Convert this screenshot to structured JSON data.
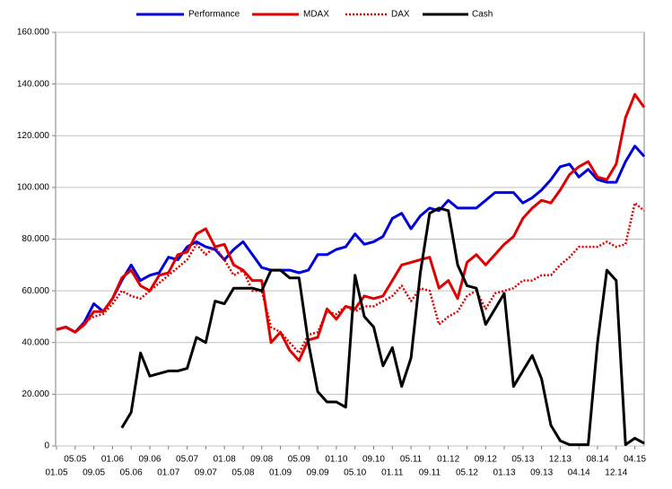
{
  "chart_data": {
    "type": "line",
    "categories": [
      "01.05",
      null,
      "05.05",
      null,
      "09.05",
      null,
      "01.06",
      null,
      "05.06",
      null,
      "09.06",
      null,
      "01.07",
      null,
      "05.07",
      null,
      "09.07",
      null,
      "01.08",
      null,
      "05.08",
      null,
      "09.08",
      null,
      "01.09",
      null,
      "05.09",
      null,
      "09.09",
      null,
      "01.10",
      null,
      "05.10",
      null,
      "09.10",
      null,
      "01.11",
      null,
      "05.11",
      null,
      "09.11",
      null,
      "01.12",
      null,
      "05.12",
      null,
      "09.12",
      null,
      "01.13",
      null,
      "05.13",
      null,
      "09.13",
      null,
      "12.13",
      null,
      "04.14",
      null,
      "08.14",
      null,
      "12.14",
      null,
      "04.15",
      null
    ],
    "series": [
      {
        "name": "Performance",
        "color": "#0000dd",
        "style": "solid",
        "values": [
          45000,
          46000,
          44000,
          48000,
          55000,
          52000,
          57000,
          64000,
          70000,
          64000,
          66000,
          67000,
          73000,
          72000,
          77000,
          79000,
          77000,
          76000,
          72000,
          76000,
          79000,
          74000,
          69000,
          68000,
          68000,
          68000,
          67000,
          68000,
          74000,
          74000,
          76000,
          77000,
          82000,
          78000,
          79000,
          81000,
          88000,
          90000,
          84000,
          89000,
          92000,
          91000,
          95000,
          92000,
          92000,
          92000,
          95000,
          98000,
          98000,
          98000,
          94000,
          96000,
          99000,
          103000,
          108000,
          109000,
          104000,
          107000,
          103000,
          102000,
          102000,
          110000,
          116000,
          112000
        ]
      },
      {
        "name": "MDAX",
        "color": "#e00000",
        "style": "solid",
        "values": [
          45000,
          46000,
          44000,
          47000,
          52000,
          52000,
          57000,
          65000,
          68000,
          62000,
          60000,
          66000,
          67000,
          74000,
          75000,
          82000,
          84000,
          77000,
          78000,
          70000,
          68000,
          64000,
          64000,
          40000,
          44000,
          37000,
          33000,
          41000,
          42000,
          53000,
          49000,
          54000,
          53000,
          58000,
          57000,
          58000,
          64000,
          70000,
          71000,
          72000,
          73000,
          61000,
          64000,
          57000,
          71000,
          74000,
          70000,
          74000,
          78000,
          81000,
          88000,
          92000,
          95000,
          94000,
          99000,
          105000,
          108000,
          110000,
          104000,
          103000,
          109000,
          127000,
          136000,
          131000
        ]
      },
      {
        "name": "DAX",
        "color": "#e00000",
        "style": "dotted",
        "values": [
          45000,
          46000,
          44000,
          48000,
          50000,
          51000,
          55000,
          60000,
          58000,
          57000,
          60000,
          63000,
          66000,
          69000,
          72000,
          78000,
          74000,
          77000,
          72000,
          66000,
          68000,
          60000,
          60000,
          46000,
          44000,
          40000,
          36000,
          43000,
          44000,
          52000,
          51000,
          54000,
          52000,
          54000,
          54000,
          56000,
          58000,
          62000,
          56000,
          61000,
          60000,
          47000,
          50000,
          52000,
          58000,
          60000,
          53000,
          59000,
          60000,
          61000,
          64000,
          64000,
          66000,
          66000,
          70000,
          73000,
          77000,
          77000,
          77000,
          79000,
          77000,
          78000,
          94000,
          91000
        ]
      },
      {
        "name": "Cash",
        "color": "#000000",
        "style": "solid",
        "values": [
          null,
          null,
          null,
          null,
          null,
          null,
          null,
          7000,
          13000,
          36000,
          27000,
          28000,
          29000,
          29000,
          30000,
          42000,
          40000,
          56000,
          55000,
          61000,
          61000,
          61000,
          60000,
          68000,
          68000,
          65000,
          65000,
          40000,
          21000,
          17000,
          17000,
          15000,
          66000,
          50000,
          46000,
          31000,
          38000,
          23000,
          34000,
          67000,
          90000,
          92000,
          91000,
          70000,
          62000,
          61000,
          47000,
          53000,
          59000,
          23000,
          29000,
          35000,
          26000,
          8000,
          2000,
          500,
          500,
          500,
          40000,
          68000,
          64000,
          500,
          3000,
          1000
        ]
      }
    ],
    "ylim": [
      0,
      160000
    ],
    "yticks": [
      0,
      {
        "value": 20000,
        "label": "20.000"
      },
      {
        "value": 40000,
        "label": "40.000"
      },
      {
        "value": 60000,
        "label": "60.000"
      },
      {
        "value": 80000,
        "label": "80.000"
      },
      {
        "value": 100000,
        "label": "100.000"
      },
      {
        "value": 120000,
        "label": "120.000"
      },
      {
        "value": 140000,
        "label": "140.000"
      },
      {
        "value": 160000,
        "label": "160.000"
      }
    ],
    "grid": true,
    "legend": "top"
  }
}
